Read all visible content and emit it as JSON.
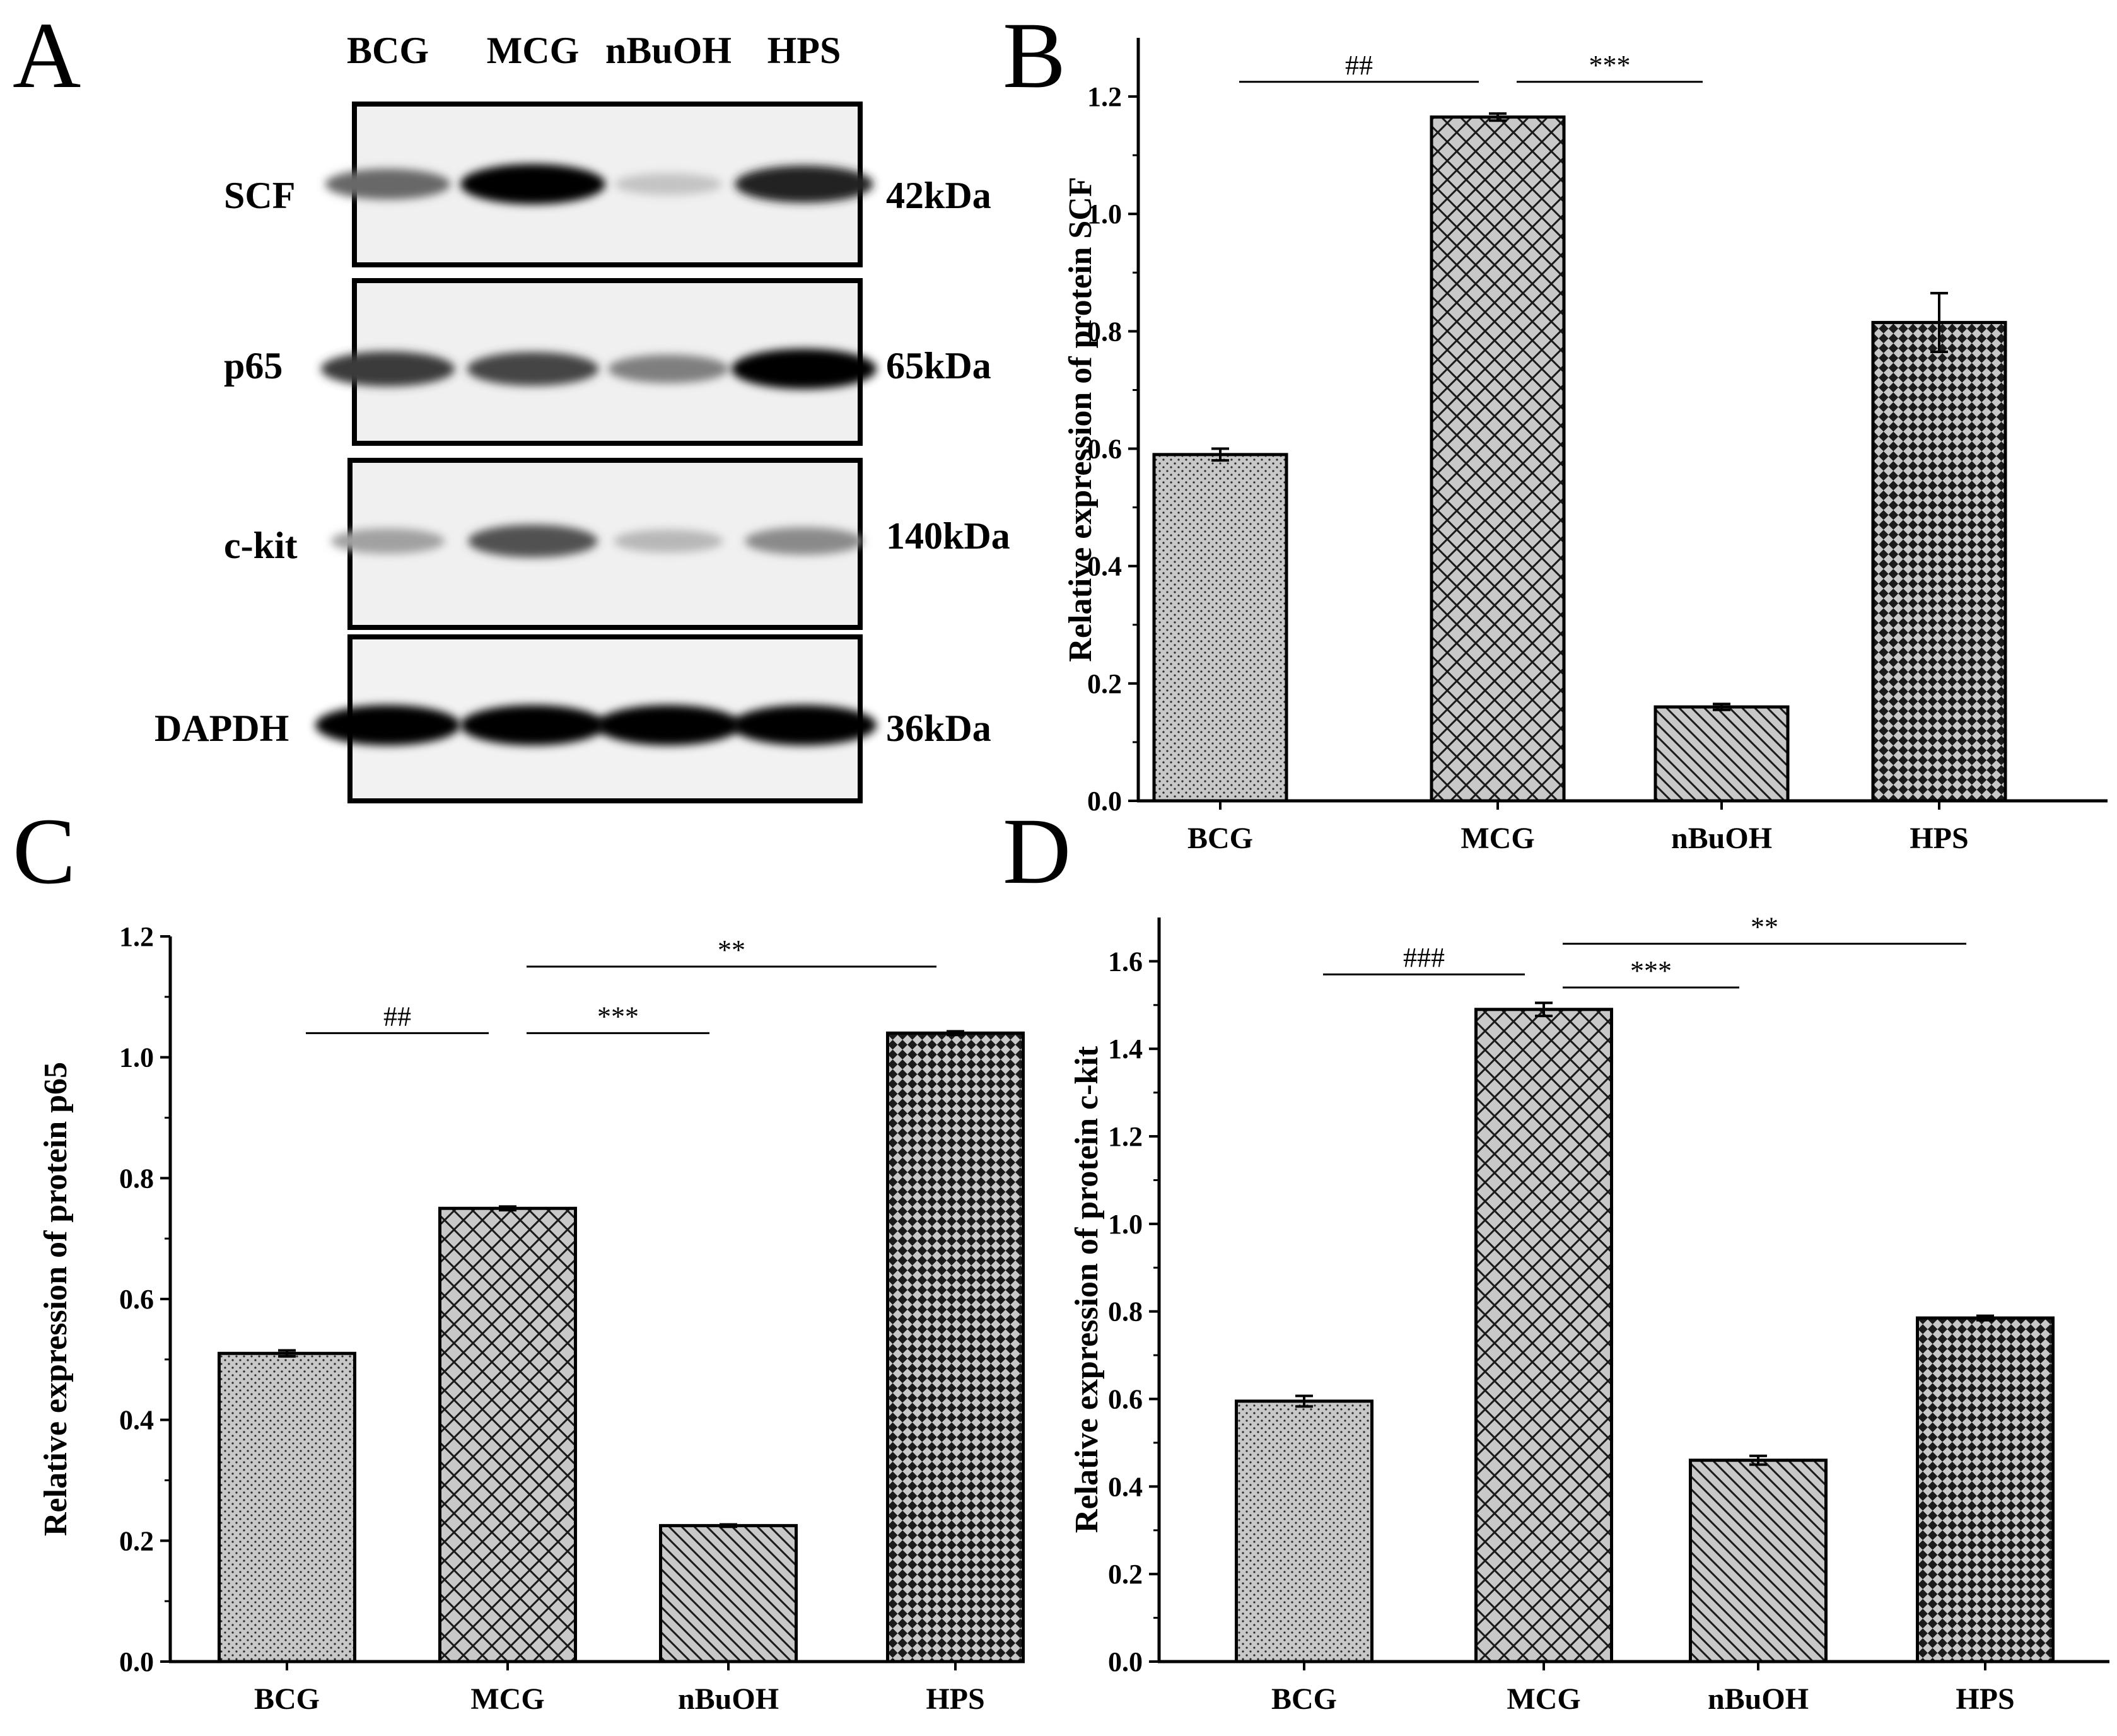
{
  "panel_letters": [
    "A",
    "B",
    "C",
    "D"
  ],
  "blot": {
    "lanes": [
      "BCG",
      "MCG",
      "nBuOH",
      "HPS"
    ],
    "rows": [
      {
        "protein": "SCF",
        "mw": "42kDa",
        "intensity": [
          0.55,
          1.0,
          0.15,
          0.85
        ]
      },
      {
        "protein": "p65",
        "mw": "65kDa",
        "intensity": [
          0.75,
          0.7,
          0.45,
          1.0
        ]
      },
      {
        "protein": "c-kit",
        "mw": "140kDa",
        "intensity": [
          0.3,
          0.65,
          0.2,
          0.4
        ]
      },
      {
        "protein": "DAPDH",
        "mw": "36kDa",
        "intensity": [
          1.0,
          1.0,
          1.0,
          1.0
        ]
      }
    ]
  },
  "colors": {
    "bar_fill": "#c8c8c8",
    "pattern_ink": "#1a1a1a",
    "axis": "#000000"
  },
  "chart_data": [
    {
      "panel": "B",
      "type": "bar",
      "categories": [
        "BCG",
        "MCG",
        "nBuOH",
        "HPS"
      ],
      "values": [
        0.59,
        1.165,
        0.16,
        0.815
      ],
      "errors": [
        0.01,
        0.006,
        0.005,
        0.05
      ],
      "ylabel": "Relative expression of protein SCF",
      "ylim": [
        0,
        1.3
      ],
      "yticks": [
        "0.0",
        "0.2",
        "0.4",
        "0.6",
        "0.8",
        "1.0",
        "1.2"
      ],
      "patterns": [
        "dots",
        "crosshatch",
        "diag",
        "checker"
      ],
      "significance": [
        {
          "from": 0,
          "to": 1,
          "label": "##",
          "y": 1.225
        },
        {
          "from": 1,
          "to": 2,
          "label": "***",
          "y": 1.225
        }
      ]
    },
    {
      "panel": "C",
      "type": "bar",
      "categories": [
        "BCG",
        "MCG",
        "nBuOH",
        "HPS"
      ],
      "values": [
        0.51,
        0.75,
        0.225,
        1.04
      ],
      "errors": [
        0.005,
        0.003,
        0.002,
        0.003
      ],
      "ylabel": "Relative expression of protein p65",
      "ylim": [
        0,
        1.2
      ],
      "yticks": [
        "0.0",
        "0.2",
        "0.4",
        "0.6",
        "0.8",
        "1.0",
        "1.2"
      ],
      "patterns": [
        "dots",
        "crosshatch",
        "diag",
        "checker"
      ],
      "significance": [
        {
          "from": 0,
          "to": 1,
          "label": "##",
          "y": 1.04
        },
        {
          "from": 1,
          "to": 2,
          "label": "***",
          "y": 1.04
        },
        {
          "from": 1,
          "to": 3,
          "label": "**",
          "y": 1.15
        }
      ]
    },
    {
      "panel": "D",
      "type": "bar",
      "categories": [
        "BCG",
        "MCG",
        "nBuOH",
        "HPS"
      ],
      "values": [
        0.595,
        1.49,
        0.46,
        0.785
      ],
      "errors": [
        0.012,
        0.015,
        0.01,
        0.005
      ],
      "ylabel": "Relative expression of protein c-kit",
      "ylim": [
        0,
        1.7
      ],
      "yticks": [
        "0.0",
        "0.2",
        "0.4",
        "0.6",
        "0.8",
        "1.0",
        "1.2",
        "1.4",
        "1.6"
      ],
      "patterns": [
        "dots",
        "crosshatch",
        "diag",
        "checker"
      ],
      "significance": [
        {
          "from": 0,
          "to": 1,
          "label": "###",
          "y": 1.57
        },
        {
          "from": 1,
          "to": 2,
          "label": "***",
          "y": 1.54
        },
        {
          "from": 1,
          "to": 3,
          "label": "**",
          "y": 1.64
        }
      ]
    }
  ]
}
